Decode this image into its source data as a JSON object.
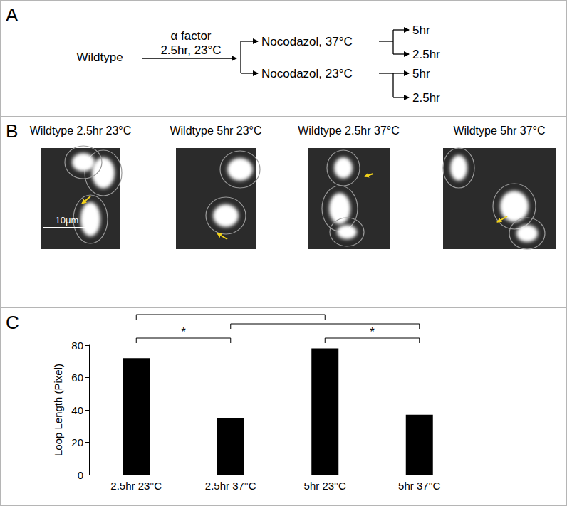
{
  "panel_labels": [
    "A",
    "B",
    "C"
  ],
  "panel_A": {
    "start": "Wildtype",
    "treatment": [
      "α factor",
      "2.5hr, 23°C"
    ],
    "branches": [
      {
        "label": "Nocodazol, 37°C",
        "times": [
          "5hr",
          "2.5hr"
        ]
      },
      {
        "label": "Nocodazol, 23°C",
        "times": [
          "5hr",
          "2.5hr"
        ]
      }
    ]
  },
  "panel_B": {
    "images": [
      "Wildtype 2.5hr 23°C",
      "Wildtype 5hr 23°C",
      "Wildtype 2.5hr 37°C",
      "Wildtype 5hr 37°C"
    ],
    "scale_bar": "10μm"
  },
  "chart_data": {
    "type": "bar",
    "y_label": "Loop Length (Pixel)",
    "categories": [
      "2.5hr 23°C",
      "2.5hr 37°C",
      "5hr 23°C",
      "5hr 37°C"
    ],
    "values": [
      72,
      35,
      78,
      37
    ],
    "color": "#000000",
    "ylim": [
      0,
      80
    ],
    "yticks": [
      0,
      20,
      40,
      60,
      80
    ],
    "grid": false,
    "comparisons": [
      {
        "from": "2.5hr 23°C",
        "to": "5hr 23°C"
      },
      {
        "from": "2.5hr 37°C",
        "to": "5hr 37°C"
      },
      {
        "from": "2.5hr 23°C",
        "to": "2.5hr 37°C",
        "label": "*"
      },
      {
        "from": "5hr 23°C",
        "to": "5hr 37°C",
        "label": "*"
      }
    ]
  }
}
